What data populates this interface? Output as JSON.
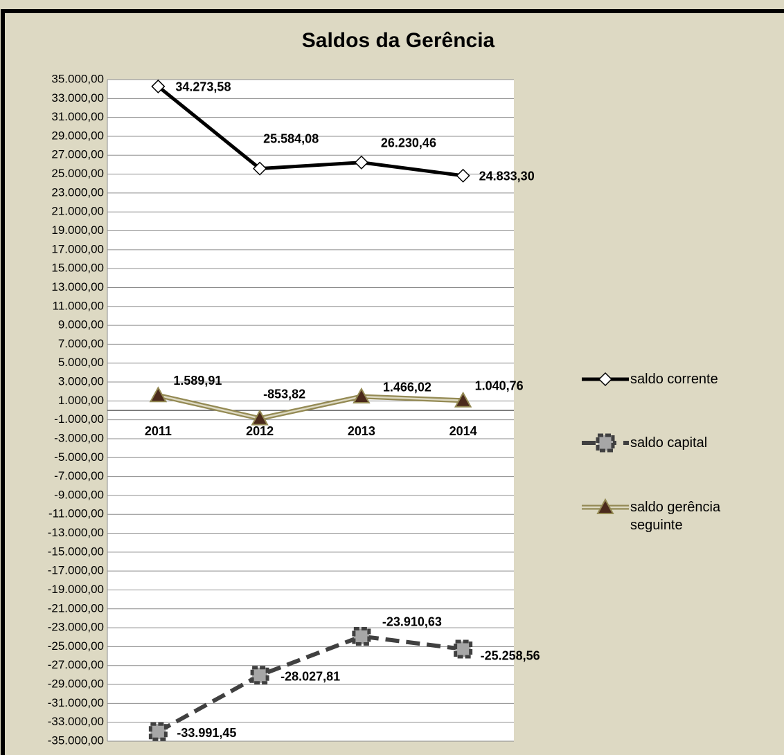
{
  "chart_data": {
    "type": "line",
    "title": "Saldos da Gerência",
    "categories": [
      "2011",
      "2012",
      "2013",
      "2014"
    ],
    "series": [
      {
        "name": "saldo corrente",
        "color": "#000000",
        "marker": "diamond",
        "values": [
          34273.58,
          25584.08,
          26230.46,
          24833.3
        ],
        "value_labels": [
          "34.273,58",
          "25.584,08",
          "26.230,46",
          "24.833,30"
        ]
      },
      {
        "name": "saldo capital",
        "color": "#404040",
        "marker": "square",
        "values": [
          -33991.45,
          -28027.81,
          -23910.63,
          -25258.56
        ],
        "value_labels": [
          "-33.991,45",
          "-28.027,81",
          "-23.910,63",
          "-25.258,56"
        ]
      },
      {
        "name": "saldo gerência seguinte",
        "color": "#948a54",
        "marker": "triangle",
        "values": [
          1589.91,
          -853.82,
          1466.02,
          1040.76
        ],
        "value_labels": [
          "1.589,91",
          "-853,82",
          "1.466,02",
          "1.040,76"
        ]
      }
    ],
    "ylim": [
      -35000,
      35000
    ],
    "yticks": [
      {
        "value": 35000,
        "label": "35.000,00"
      },
      {
        "value": 33000,
        "label": "33.000,00"
      },
      {
        "value": 31000,
        "label": "31.000,00"
      },
      {
        "value": 29000,
        "label": "29.000,00"
      },
      {
        "value": 27000,
        "label": "27.000,00"
      },
      {
        "value": 25000,
        "label": "25.000,00"
      },
      {
        "value": 23000,
        "label": "23.000,00"
      },
      {
        "value": 21000,
        "label": "21.000,00"
      },
      {
        "value": 19000,
        "label": "19.000,00"
      },
      {
        "value": 17000,
        "label": "17.000,00"
      },
      {
        "value": 15000,
        "label": "15.000,00"
      },
      {
        "value": 13000,
        "label": "13.000,00"
      },
      {
        "value": 11000,
        "label": "11.000,00"
      },
      {
        "value": 9000,
        "label": "9.000,00"
      },
      {
        "value": 7000,
        "label": "7.000,00"
      },
      {
        "value": 5000,
        "label": "5.000,00"
      },
      {
        "value": 3000,
        "label": "3.000,00"
      },
      {
        "value": 1000,
        "label": "1.000,00"
      },
      {
        "value": -1000,
        "label": "-1.000,00"
      },
      {
        "value": -3000,
        "label": "-3.000,00"
      },
      {
        "value": -5000,
        "label": "-5.000,00"
      },
      {
        "value": -7000,
        "label": "-7.000,00"
      },
      {
        "value": -9000,
        "label": "-9.000,00"
      },
      {
        "value": -11000,
        "label": "-11.000,00"
      },
      {
        "value": -13000,
        "label": "-13.000,00"
      },
      {
        "value": -15000,
        "label": "-15.000,00"
      },
      {
        "value": -17000,
        "label": "-17.000,00"
      },
      {
        "value": -19000,
        "label": "-19.000,00"
      },
      {
        "value": -21000,
        "label": "-21.000,00"
      },
      {
        "value": -23000,
        "label": "-23.000,00"
      },
      {
        "value": -25000,
        "label": "-25.000,00"
      },
      {
        "value": -27000,
        "label": "-27.000,00"
      },
      {
        "value": -29000,
        "label": "-29.000,00"
      },
      {
        "value": -31000,
        "label": "-31.000,00"
      },
      {
        "value": -33000,
        "label": "-33.000,00"
      },
      {
        "value": -35000,
        "label": "-35.000,00"
      }
    ],
    "grid": true,
    "legend": "right"
  }
}
